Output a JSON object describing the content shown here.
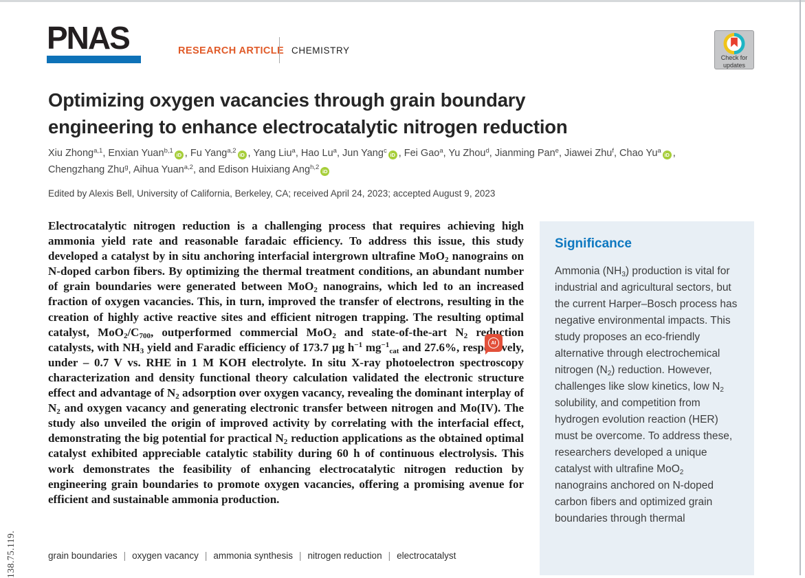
{
  "colors": {
    "pnas_blue": "#0e72b8",
    "article_type_orange": "#e05a28",
    "significance_bg": "#e8eff5",
    "significance_heading_blue": "#0e78c0",
    "orcid_green": "#a6ce39",
    "ai_badge_red": "#e2503a"
  },
  "header": {
    "logo": "PNAS",
    "article_type": "RESEARCH ARTICLE",
    "category": "CHEMISTRY",
    "check_updates_line1": "Check for",
    "check_updates_line2": "updates"
  },
  "article": {
    "title_line1": "Optimizing oxygen vacancies through grain boundary",
    "title_line2": "engineering to enhance electrocatalytic nitrogen reduction",
    "authors": [
      {
        "name": "Xiu Zhong",
        "sup": "a,1",
        "orcid": false,
        "sep": ", "
      },
      {
        "name": "Enxian Yuan",
        "sup": "b,1",
        "orcid": true,
        "sep": ", "
      },
      {
        "name": "Fu Yang",
        "sup": "a,2",
        "orcid": true,
        "sep": ", "
      },
      {
        "name": "Yang Liu",
        "sup": "a",
        "orcid": false,
        "sep": ", "
      },
      {
        "name": "Hao Lu",
        "sup": "a",
        "orcid": false,
        "sep": ", "
      },
      {
        "name": "Jun Yang",
        "sup": "c",
        "orcid": true,
        "sep": ", "
      },
      {
        "name": "Fei Gao",
        "sup": "a",
        "orcid": false,
        "sep": ", "
      },
      {
        "name": "Yu Zhou",
        "sup": "d",
        "orcid": false,
        "sep": ", "
      },
      {
        "name": "Jianming Pan",
        "sup": "e",
        "orcid": false,
        "sep": ", "
      },
      {
        "name": "Jiawei Zhu",
        "sup": "f",
        "orcid": false,
        "sep": ", "
      },
      {
        "name": "Chao Yu",
        "sup": "a",
        "orcid": true,
        "sep": ","
      },
      {
        "br": true
      },
      {
        "name": "Chengzhang Zhu",
        "sup": "g",
        "orcid": false,
        "sep": ", "
      },
      {
        "name": "Aihua Yuan",
        "sup": "a,2",
        "orcid": false,
        "sep": ", "
      },
      {
        "pre": "and ",
        "name": "Edison Huixiang Ang",
        "sup": "h,2",
        "orcid": true,
        "sep": ""
      }
    ],
    "edited_line": "Edited by Alexis Bell, University of California, Berkeley, CA; received April 24, 2023; accepted August 9, 2023",
    "abstract_html": "Electrocatalytic nitrogen reduction is a challenging process that requires achieving high ammonia yield rate and reasonable faradaic efficiency. To address this issue, this study developed a catalyst by in situ anchoring interfacial intergrown ultrafine MoO<sub>2</sub> nanograins on N-doped carbon fibers. By optimizing the thermal treatment conditions, an abundant number of grain boundaries were generated between MoO<sub>2</sub> nanograins, which led to an increased fraction of oxygen vacancies. This, in turn, improved the transfer of electrons, resulting in the creation of highly active reactive sites and efficient nitrogen trapping. The resulting optimal catalyst, MoO<sub>2</sub>/C<sub>700</sub>, outperformed commercial MoO<sub>2</sub> and state-of-the-art N<sub>2</sub> reduction catalysts, with NH<sub>3</sub> yield and Faradic efficiency of 173.7 μg h<sup>−1</sup> mg<sup>−1</sup><sub>cat</sub> and 27.6%, respectively, under – 0.7 V vs. RHE in 1 M KOH electrolyte. In situ X-ray photoelectron spectroscopy characterization and density functional theory calculation validated the electronic structure effect and advantage of N<sub>2</sub> adsorption over oxygen vacancy, revealing the dominant interplay of N<sub>2</sub> and oxygen vacancy and generating electronic transfer between nitrogen and Mo(IV). The study also unveiled the origin of improved activity by correlating with the interfacial effect, demonstrating the big potential for practical N<sub>2</sub> reduction applications as the obtained optimal catalyst exhibited appreciable catalytic stability during 60 h of continuous electrolysis. This work demonstrates the feasibility of enhancing electrocatalytic nitrogen reduction by engineering grain boundaries to promote oxygen vacancies, offering a promising avenue for efficient and sustainable ammonia production.",
    "keywords": [
      "grain boundaries",
      "oxygen vacancy",
      "ammonia synthesis",
      "nitrogen reduction",
      "electrocatalyst"
    ]
  },
  "significance": {
    "title": "Significance",
    "body_html": "Ammonia (NH<sub>3</sub>) production is vital for industrial and agricultural sectors, but the current Harper–Bosch process has negative environmental impacts. This study proposes an eco-friendly alternative through electrochemical nitrogen (N<sub>2</sub>) reduction. However, challenges like slow kinetics, low N<sub>2</sub> solubility, and competition from hydrogen evolution reaction (HER) must be overcome. To address these, researchers developed a unique catalyst with ultrafine MoO<sub>2</sub> nanograins anchored on N-doped carbon fibers and optimized grain boundaries through thermal"
  },
  "annotation_badge": {
    "label": "AI"
  },
  "watermark_ip": "138.75.119."
}
